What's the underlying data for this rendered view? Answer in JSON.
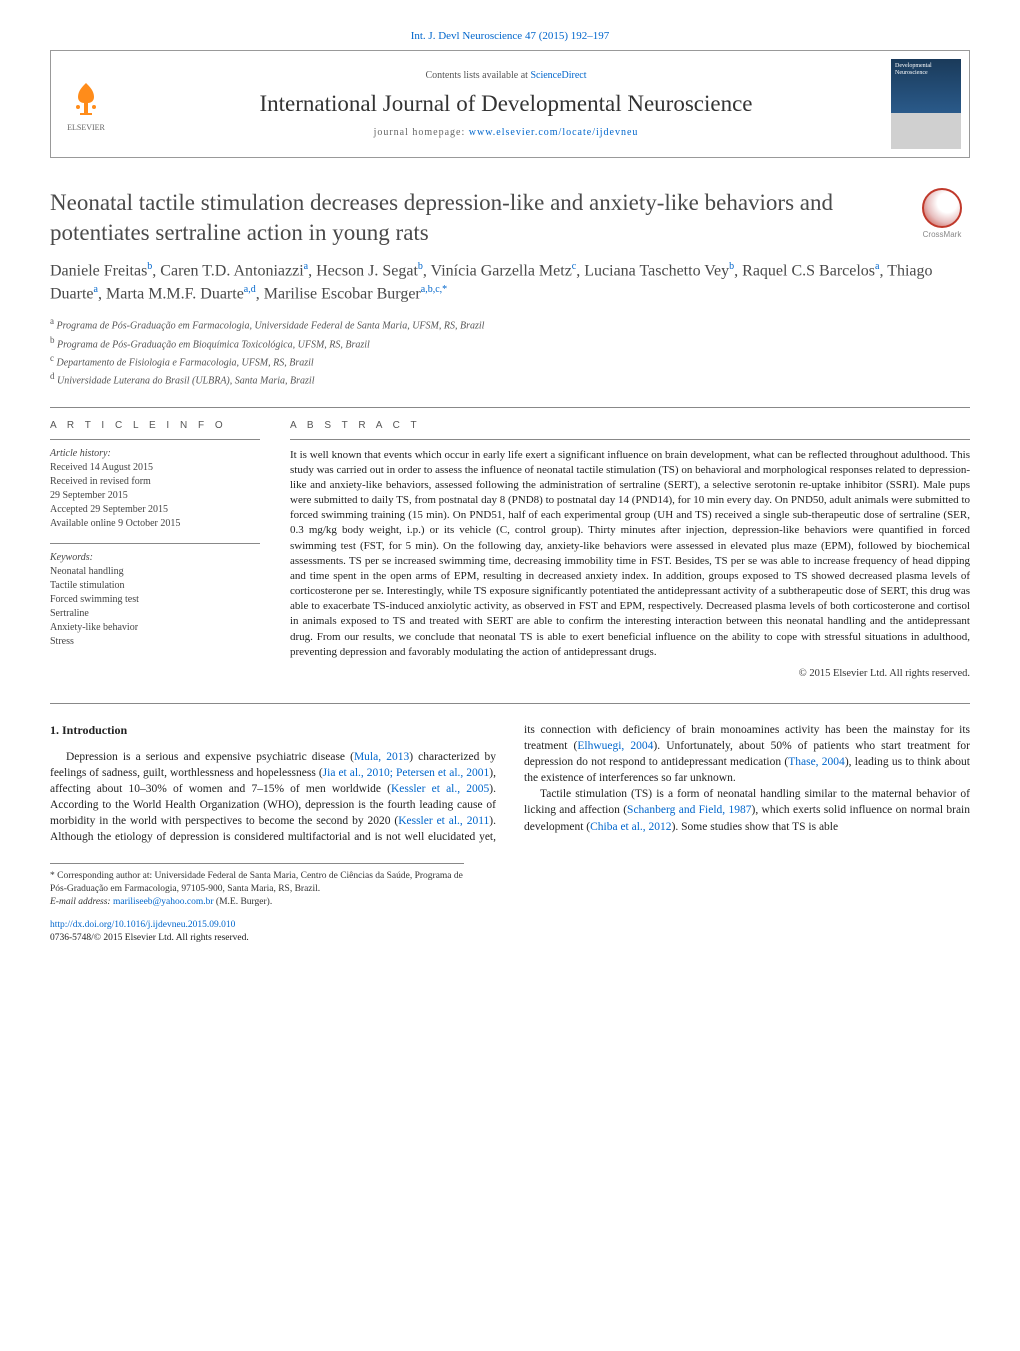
{
  "colors": {
    "link": "#0066cc",
    "text": "#1a1a1a",
    "muted": "#555555",
    "rule": "#888888",
    "elsevier_orange": "#ff8c1a",
    "crossmark_red": "#c0392b"
  },
  "topLink": "Int. J. Devl Neuroscience 47 (2015) 192–197",
  "header": {
    "contentsPrefix": "Contents lists available at ",
    "contentsLink": "ScienceDirect",
    "journalTitle": "International Journal of Developmental Neuroscience",
    "homepagePrefix": "journal homepage: ",
    "homepageLink": "www.elsevier.com/locate/ijdevneu",
    "publisher": "ELSEVIER",
    "coverLabel": "Developmental Neuroscience"
  },
  "crossmark": "CrossMark",
  "title": "Neonatal tactile stimulation decreases depression-like and anxiety-like behaviors and potentiates sertraline action in young rats",
  "authorsHtml": "Daniele Freitas<sup>b</sup>, Caren T.D. Antoniazzi<sup>a</sup>, Hecson J. Segat<sup>b</sup>, Vinícia Garzella Metz<sup>c</sup>, Luciana Taschetto Vey<sup>b</sup>, Raquel C.S Barcelos<sup>a</sup>, Thiago Duarte<sup>a</sup>, Marta M.M.F. Duarte<sup>a,d</sup>, Marilise Escobar Burger<sup>a,b,c,*</sup>",
  "affiliations": [
    {
      "sup": "a",
      "text": "Programa de Pós-Graduação em Farmacologia, Universidade Federal de Santa Maria, UFSM, RS, Brazil"
    },
    {
      "sup": "b",
      "text": "Programa de Pós-Graduação em Bioquímica Toxicológica, UFSM, RS, Brazil"
    },
    {
      "sup": "c",
      "text": "Departamento de Fisiologia e Farmacologia, UFSM, RS, Brazil"
    },
    {
      "sup": "d",
      "text": "Universidade Luterana do Brasil (ULBRA), Santa Maria, Brazil"
    }
  ],
  "info": {
    "heading": "A R T I C L E   I N F O",
    "historyHeading": "Article history:",
    "history": [
      "Received 14 August 2015",
      "Received in revised form",
      "29 September 2015",
      "Accepted 29 September 2015",
      "Available online 9 October 2015"
    ],
    "keywordsHeading": "Keywords:",
    "keywords": [
      "Neonatal handling",
      "Tactile stimulation",
      "Forced swimming test",
      "Sertraline",
      "Anxiety-like behavior",
      "Stress"
    ]
  },
  "abstract": {
    "heading": "A B S T R A C T",
    "text": "It is well known that events which occur in early life exert a significant influence on brain development, what can be reflected throughout adulthood. This study was carried out in order to assess the influence of neonatal tactile stimulation (TS) on behavioral and morphological responses related to depression-like and anxiety-like behaviors, assessed following the administration of sertraline (SERT), a selective serotonin re-uptake inhibitor (SSRI). Male pups were submitted to daily TS, from postnatal day 8 (PND8) to postnatal day 14 (PND14), for 10 min every day. On PND50, adult animals were submitted to forced swimming training (15 min). On PND51, half of each experimental group (UH and TS) received a single sub-therapeutic dose of sertraline (SER, 0.3 mg/kg body weight, i.p.) or its vehicle (C, control group). Thirty minutes after injection, depression-like behaviors were quantified in forced swimming test (FST, for 5 min). On the following day, anxiety-like behaviors were assessed in elevated plus maze (EPM), followed by biochemical assessments. TS per se increased swimming time, decreasing immobility time in FST. Besides, TS per se was able to increase frequency of head dipping and time spent in the open arms of EPM, resulting in decreased anxiety index. In addition, groups exposed to TS showed decreased plasma levels of corticosterone per se. Interestingly, while TS exposure significantly potentiated the antidepressant activity of a subtherapeutic dose of SERT, this drug was able to exacerbate TS-induced anxiolytic activity, as observed in FST and EPM, respectively. Decreased plasma levels of both corticosterone and cortisol in animals exposed to TS and treated with SERT are able to confirm the interesting interaction between this neonatal handling and the antidepressant drug. From our results, we conclude that neonatal TS is able to exert beneficial influence on the ability to cope with stressful situations in adulthood, preventing depression and favorably modulating the action of antidepressant drugs.",
    "copyright": "© 2015 Elsevier Ltd. All rights reserved."
  },
  "section1": {
    "heading": "1.  Introduction",
    "para1_before": "Depression is a serious and expensive psychiatric disease (",
    "link1": "Mula, 2013",
    "para1_mid1": ") characterized by feelings of sadness, guilt, worthlessness and hopelessness (",
    "link2": "Jia et al., 2010; Petersen et al., 2001",
    "para1_mid2": "), affecting about 10–30% of women and 7–15% of men worldwide (",
    "link3": "Kessler et al., 2005",
    "para1_after": "). According to the World Health Organization (WHO), depression is the fourth leading cause of morbidity in the world with perspectives to become the second by 2020 (",
    "link4": "Kessler et al., 2011",
    "para1_mid3": "). Although the etiology of depression is considered multifactorial and is not well elucidated yet, its connection with deficiency of brain monoamines activity has been the mainstay for its treatment (",
    "link5": "Elhwuegi, 2004",
    "para1_mid4": "). Unfortunately, about 50% of patients who start treatment for depression do not respond to antidepressant medication (",
    "link6": "Thase, 2004",
    "para1_end": "), leading us to think about the existence of interferences so far unknown.",
    "para2_before": "Tactile stimulation (TS) is a form of neonatal handling similar to the maternal behavior of licking and affection (",
    "link7": "Schanberg and Field, 1987",
    "para2_mid": "), which exerts solid influence on normal brain development (",
    "link8": "Chiba et al., 2012",
    "para2_end": "). Some studies show that TS is able"
  },
  "footnotes": {
    "corr": "* Corresponding author at: Universidade Federal de Santa Maria, Centro de Ciências da Saúde, Programa de Pós-Graduação em Farmacologia, 97105-900, Santa Maria, RS, Brazil.",
    "emailLabel": "E-mail address: ",
    "email": "mariliseeb@yahoo.com.br",
    "emailName": " (M.E. Burger)."
  },
  "doi": {
    "link": "http://dx.doi.org/10.1016/j.ijdevneu.2015.09.010",
    "issn": "0736-5748/© 2015 Elsevier Ltd. All rights reserved."
  }
}
